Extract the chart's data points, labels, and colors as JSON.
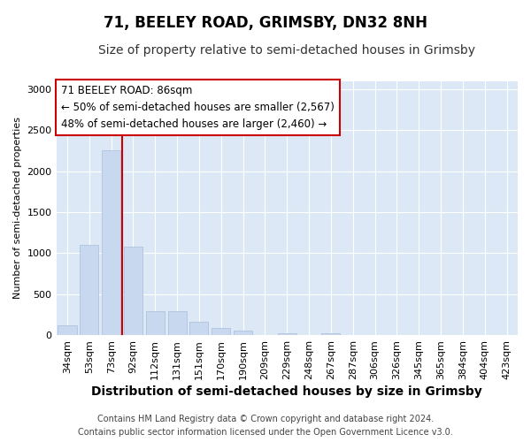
{
  "title": "71, BEELEY ROAD, GRIMSBY, DN32 8NH",
  "subtitle": "Size of property relative to semi-detached houses in Grimsby",
  "xlabel": "Distribution of semi-detached houses by size in Grimsby",
  "ylabel": "Number of semi-detached properties",
  "categories": [
    "34sqm",
    "53sqm",
    "73sqm",
    "92sqm",
    "112sqm",
    "131sqm",
    "151sqm",
    "170sqm",
    "190sqm",
    "209sqm",
    "229sqm",
    "248sqm",
    "267sqm",
    "287sqm",
    "306sqm",
    "326sqm",
    "345sqm",
    "365sqm",
    "384sqm",
    "404sqm",
    "423sqm"
  ],
  "values": [
    120,
    1100,
    2250,
    1075,
    290,
    290,
    160,
    90,
    50,
    0,
    25,
    0,
    20,
    0,
    0,
    0,
    0,
    0,
    0,
    0,
    0
  ],
  "bar_color": "#c8d8ee",
  "bar_edge_color": "#b0c4de",
  "vline_color": "#cc0000",
  "vline_x": 3,
  "annotation_line1": "71 BEELEY ROAD: 86sqm",
  "annotation_line2": "← 50% of semi-detached houses are smaller (2,567)",
  "annotation_line3": "48% of semi-detached houses are larger (2,460) →",
  "annotation_box_facecolor": "#ffffff",
  "annotation_box_edgecolor": "#cc0000",
  "ylim": [
    0,
    3100
  ],
  "yticks": [
    0,
    500,
    1000,
    1500,
    2000,
    2500,
    3000
  ],
  "fig_facecolor": "#ffffff",
  "plot_bg_color": "#dce8f5",
  "grid_color": "#ffffff",
  "footnote_line1": "Contains HM Land Registry data © Crown copyright and database right 2024.",
  "footnote_line2": "Contains public sector information licensed under the Open Government Licence v3.0.",
  "title_fontsize": 12,
  "subtitle_fontsize": 10,
  "xlabel_fontsize": 10,
  "ylabel_fontsize": 8,
  "tick_fontsize": 8,
  "annot_fontsize": 8.5,
  "footnote_fontsize": 7
}
